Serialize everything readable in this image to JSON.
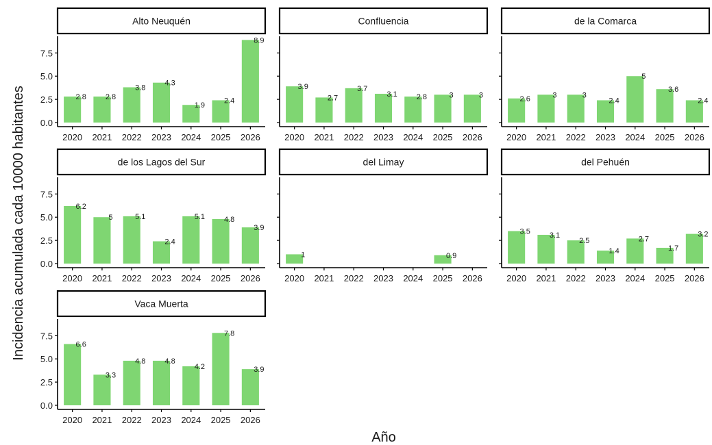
{
  "chart_data": {
    "type": "bar",
    "xlabel": "Año",
    "ylabel": "Incidencia acumulada cada 10000 habitantes",
    "ylim": [
      0,
      9
    ],
    "yticks": [
      "0.0",
      "2.5",
      "5.0",
      "7.5"
    ],
    "bar_color": "#7fd672",
    "categories": [
      "2020",
      "2021",
      "2022",
      "2023",
      "2024",
      "2025",
      "2026"
    ],
    "panels": [
      {
        "title": "Alto Neuquén",
        "values": [
          2.8,
          2.8,
          3.8,
          4.3,
          1.9,
          2.4,
          8.9
        ],
        "labels": [
          "2.8",
          "2.8",
          "3.8",
          "4.3",
          "1.9",
          "2.4",
          "8.9"
        ]
      },
      {
        "title": "Confluencia",
        "values": [
          3.9,
          2.7,
          3.7,
          3.1,
          2.8,
          3,
          3
        ],
        "labels": [
          "3.9",
          "2.7",
          "3.7",
          "3.1",
          "2.8",
          "3",
          "3"
        ]
      },
      {
        "title": "de la Comarca",
        "values": [
          2.6,
          3,
          3,
          2.4,
          5,
          3.6,
          2.4
        ],
        "labels": [
          "2.6",
          "3",
          "3",
          "2.4",
          "5",
          "3.6",
          "2.4"
        ]
      },
      {
        "title": "de los Lagos del Sur",
        "values": [
          6.2,
          5,
          5.1,
          2.4,
          5.1,
          4.8,
          3.9
        ],
        "labels": [
          "6.2",
          "5",
          "5.1",
          "2.4",
          "5.1",
          "4.8",
          "3.9"
        ]
      },
      {
        "title": "del Limay",
        "values": [
          1,
          null,
          null,
          null,
          null,
          0.9,
          null
        ],
        "labels": [
          "1",
          "",
          "",
          "",
          "",
          "0.9",
          ""
        ]
      },
      {
        "title": "del Pehuén",
        "values": [
          3.5,
          3.1,
          2.5,
          1.4,
          2.7,
          1.7,
          3.2
        ],
        "labels": [
          "3.5",
          "3.1",
          "2.5",
          "1.4",
          "2.7",
          "1.7",
          "3.2"
        ]
      },
      {
        "title": "Vaca Muerta",
        "values": [
          6.6,
          3.3,
          4.8,
          4.8,
          4.2,
          7.8,
          3.9
        ],
        "labels": [
          "6.6",
          "3.3",
          "4.8",
          "4.8",
          "4.2",
          "7.8",
          "3.9"
        ]
      }
    ]
  }
}
